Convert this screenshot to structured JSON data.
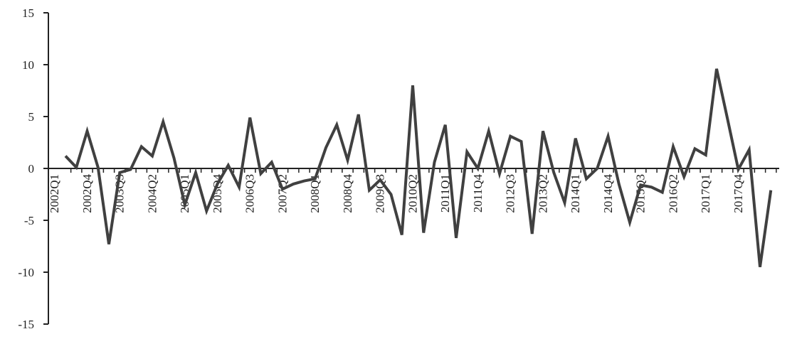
{
  "chart_data": {
    "type": "line",
    "categories": [
      "2002Q1",
      null,
      null,
      "2002Q4",
      null,
      null,
      "2003Q3",
      null,
      null,
      "2004Q2",
      null,
      null,
      "2005Q1",
      null,
      null,
      "2005Q4",
      null,
      null,
      "2006Q3",
      null,
      null,
      "2007Q2",
      null,
      null,
      "2008Q1",
      null,
      null,
      "2008Q4",
      null,
      null,
      "2009Q3",
      null,
      null,
      "2010Q2",
      null,
      null,
      "2011Q1",
      null,
      null,
      "2011Q4",
      null,
      null,
      "2012Q3",
      null,
      null,
      "2013Q2",
      null,
      null,
      "2014Q1",
      null,
      null,
      "2014Q4",
      null,
      null,
      "2015Q3",
      null,
      null,
      "2016Q2",
      null,
      null,
      "2017Q1",
      null,
      null,
      "2017Q4",
      null,
      null
    ],
    "values": [
      1.2,
      0.1,
      3.6,
      0.1,
      -7.3,
      -0.4,
      -0.1,
      2.1,
      1.2,
      4.5,
      1.0,
      -3.5,
      -0.4,
      -4.1,
      -1.5,
      0.3,
      -1.8,
      4.9,
      -0.5,
      0.6,
      -2.0,
      -1.5,
      -1.2,
      -1.0,
      2.0,
      4.2,
      0.8,
      5.2,
      -2.1,
      -1.1,
      -2.5,
      -6.4,
      8.0,
      -6.2,
      0.6,
      4.2,
      -6.7,
      1.6,
      0.0,
      3.6,
      -0.5,
      3.1,
      2.6,
      -6.3,
      3.6,
      -0.4,
      -3.3,
      2.9,
      -1.0,
      0.0,
      3.1,
      -1.5,
      -5.2,
      -1.6,
      -1.8,
      -2.3,
      2.1,
      -0.8,
      1.9,
      1.3,
      9.6,
      4.8,
      -0.1,
      1.8,
      -9.5,
      -2.1
    ],
    "color": "#404040",
    "ylim": [
      -15,
      15
    ],
    "yticks": [
      -15,
      -10,
      -5,
      0,
      5,
      10,
      15
    ]
  }
}
